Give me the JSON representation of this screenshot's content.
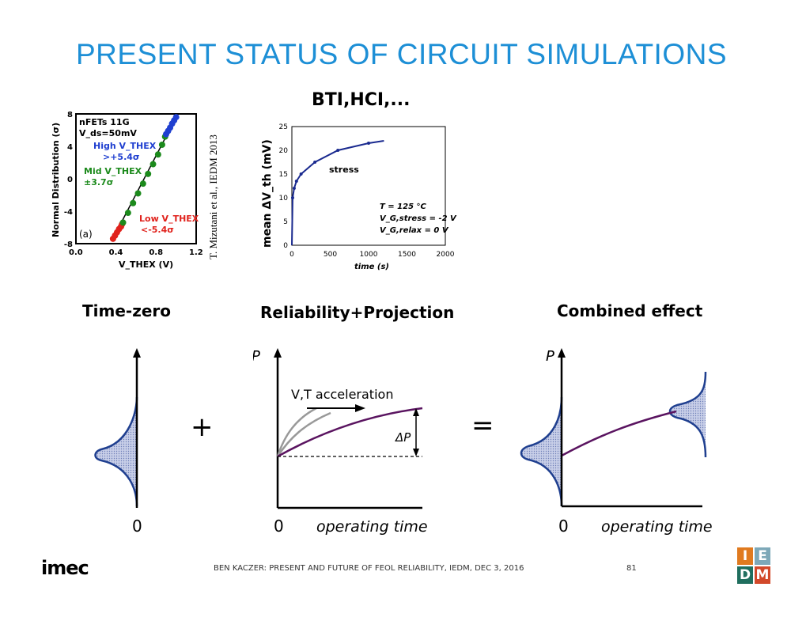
{
  "title": "PRESENT STATUS OF CIRCUIT SIMULATIONS",
  "subtitle": "BTI,HCI,...",
  "citation": "T. Mizutani et al., IEDM 2013",
  "labels": {
    "time_zero": "Time-zero",
    "reliability": "Reliability+Projection",
    "combined": "Combined effect",
    "plus": "+",
    "equals": "="
  },
  "footer": {
    "text": "BEN KACZER: PRESENT AND FUTURE OF FEOL RELIABILITY, IEDM, DEC 3, 2016",
    "page": "81",
    "logo": "imec",
    "iedm_letters": [
      "I",
      "E",
      "D",
      "M"
    ]
  },
  "colors": {
    "title": "#1d8fd6",
    "curve": "#5a1460",
    "dist_fill": "#aeb8dc",
    "dist_edge": "#1f3f8f",
    "iedm": [
      "#e07a1f",
      "#7da8b8",
      "#1f6e5e",
      "#d2492a"
    ]
  },
  "chart_data": [
    {
      "type": "scatter",
      "id": "vthex_distribution",
      "text_lines": [
        "nFETs 11G",
        "V_ds=50mV"
      ],
      "panel_label": "(a)",
      "xlabel": "V_THEX (V)",
      "ylabel": "Normal Distribution (σ)",
      "xlim": [
        0.0,
        1.2
      ],
      "ylim": [
        -8,
        8
      ],
      "xticks": [
        "0.0",
        "0.4",
        "0.8",
        "1.2"
      ],
      "yticks": [
        "-8",
        "-4",
        "0",
        "4",
        "8"
      ],
      "annotations": [
        {
          "text": "High V_THEX",
          "text2": ">+5.4σ",
          "color": "#1f3fd0"
        },
        {
          "text": "Mid V_THEX",
          "text2": "±3.7σ",
          "color": "#1c8a1c"
        },
        {
          "text": "Low V_THEX",
          "text2": "<-5.4σ",
          "color": "#e0221c"
        }
      ],
      "series": [
        {
          "color": "#e0221c",
          "points": [
            [
              0.37,
              -7.4
            ],
            [
              0.39,
              -7.0
            ],
            [
              0.41,
              -6.6
            ],
            [
              0.43,
              -6.2
            ],
            [
              0.45,
              -5.9
            ],
            [
              0.46,
              -5.6
            ]
          ]
        },
        {
          "color": "#1c8a1c",
          "points": [
            [
              0.47,
              -5.4
            ],
            [
              0.52,
              -4.2
            ],
            [
              0.57,
              -3.0
            ],
            [
              0.62,
              -1.8
            ],
            [
              0.67,
              -0.6
            ],
            [
              0.72,
              0.6
            ],
            [
              0.77,
              1.8
            ],
            [
              0.82,
              3.0
            ],
            [
              0.86,
              4.2
            ],
            [
              0.89,
              5.2
            ]
          ]
        },
        {
          "color": "#1f3fd0",
          "points": [
            [
              0.9,
              5.5
            ],
            [
              0.92,
              5.9
            ],
            [
              0.94,
              6.3
            ],
            [
              0.96,
              6.8
            ],
            [
              0.98,
              7.2
            ],
            [
              1.0,
              7.6
            ]
          ]
        }
      ]
    },
    {
      "type": "line",
      "id": "vth_shift_vs_time",
      "xlabel": "time (s)",
      "ylabel": "mean ΔV_th (mV)",
      "xlim": [
        0,
        2000
      ],
      "ylim": [
        0,
        25
      ],
      "xticks": [
        "0",
        "500",
        "1000",
        "1500",
        "2000"
      ],
      "yticks": [
        "0",
        "5",
        "10",
        "15",
        "20",
        "25"
      ],
      "inline_label": "stress",
      "conditions": [
        "T = 125 °C",
        "V_G,stress = -2 V",
        "V_G,relax = 0 V"
      ],
      "x": [
        0,
        10,
        30,
        60,
        120,
        300,
        600,
        1000,
        1200
      ],
      "values": [
        0,
        10,
        12,
        13.5,
        15,
        17.5,
        20,
        21.5,
        22
      ]
    }
  ],
  "sketches": {
    "zero_label": "0",
    "p_label": "P",
    "operating_time": "operating time",
    "acceleration": "V,T acceleration",
    "delta_p": "ΔP"
  }
}
